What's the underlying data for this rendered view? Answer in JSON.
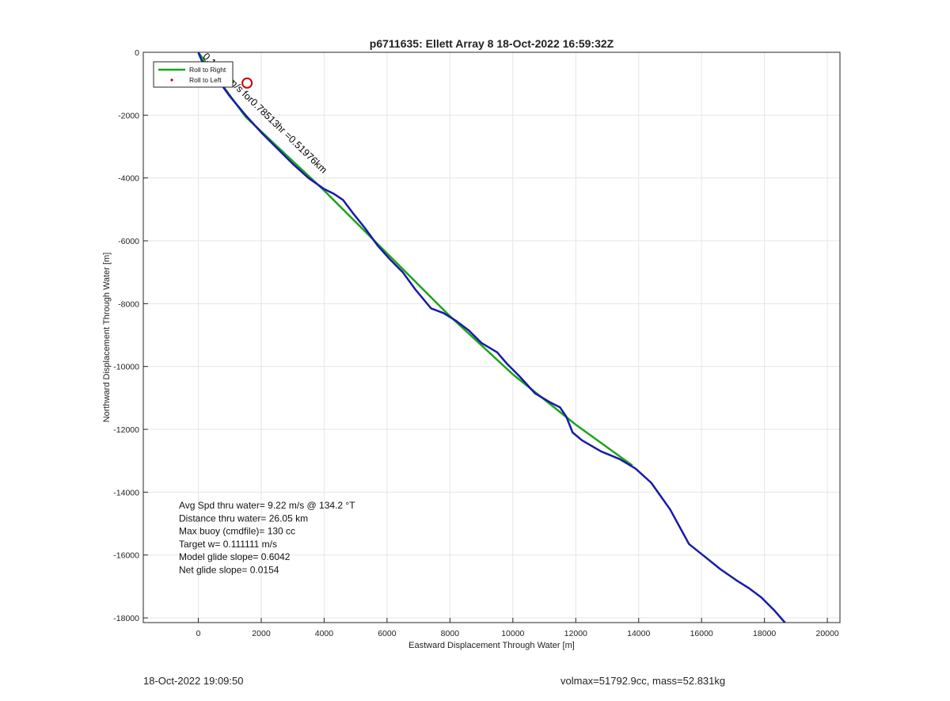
{
  "footer": {
    "left": "18-Oct-2022 19:09:50",
    "right": "volmax=51792.9cc, mass=52.831kg"
  },
  "chart_data": {
    "type": "line",
    "title": "p6711635: Ellett Array 8 18-Oct-2022 16:59:32Z",
    "xlabel": "Eastward Displacement Through Water [m]",
    "ylabel": "Northward Displacement Through Water [m]",
    "xlim": [
      -1750,
      20400
    ],
    "ylim": [
      -18150,
      0
    ],
    "xticks": [
      0,
      2000,
      4000,
      6000,
      8000,
      10000,
      12000,
      14000,
      16000,
      18000,
      20000
    ],
    "yticks": [
      0,
      -2000,
      -4000,
      -6000,
      -8000,
      -10000,
      -12000,
      -14000,
      -16000,
      -18000
    ],
    "grid": true,
    "legend": {
      "position": "top-left",
      "entries": [
        "Roll to Right",
        "Roll to Left"
      ]
    },
    "series": [
      {
        "name": "Roll to Right",
        "color": "#1aa51a",
        "points": [
          [
            0,
            0
          ],
          [
            1500,
            -2050
          ],
          [
            4000,
            -4400
          ],
          [
            6000,
            -6400
          ],
          [
            8000,
            -8400
          ],
          [
            10000,
            -10250
          ],
          [
            12000,
            -11850
          ],
          [
            13800,
            -13150
          ]
        ]
      },
      {
        "color": "#1a1aa8",
        "points": [
          [
            0,
            0
          ],
          [
            100,
            -250
          ],
          [
            300,
            -500
          ],
          [
            600,
            -850
          ],
          [
            1000,
            -1400
          ],
          [
            1500,
            -2000
          ],
          [
            2000,
            -2550
          ],
          [
            2500,
            -3050
          ],
          [
            3000,
            -3550
          ],
          [
            3500,
            -4000
          ],
          [
            4000,
            -4350
          ],
          [
            4300,
            -4500
          ],
          [
            4600,
            -4700
          ],
          [
            4900,
            -5100
          ],
          [
            5300,
            -5600
          ],
          [
            5700,
            -6150
          ],
          [
            6100,
            -6600
          ],
          [
            6500,
            -7000
          ],
          [
            6900,
            -7550
          ],
          [
            7400,
            -8150
          ],
          [
            7800,
            -8300
          ],
          [
            8200,
            -8550
          ],
          [
            8600,
            -8850
          ],
          [
            9000,
            -9250
          ],
          [
            9500,
            -9550
          ],
          [
            9800,
            -9900
          ],
          [
            10200,
            -10300
          ],
          [
            10700,
            -10850
          ],
          [
            11200,
            -11150
          ],
          [
            11500,
            -11300
          ],
          [
            11700,
            -11600
          ],
          [
            11900,
            -12100
          ],
          [
            12200,
            -12350
          ],
          [
            12800,
            -12700
          ],
          [
            13400,
            -12950
          ],
          [
            13900,
            -13250
          ],
          [
            14400,
            -13700
          ],
          [
            15000,
            -14550
          ],
          [
            15300,
            -15100
          ],
          [
            15600,
            -15650
          ],
          [
            16100,
            -16050
          ],
          [
            16600,
            -16450
          ],
          [
            17100,
            -16800
          ],
          [
            17500,
            -17050
          ],
          [
            17900,
            -17350
          ],
          [
            18300,
            -17750
          ],
          [
            18650,
            -18150
          ]
        ]
      }
    ],
    "markers": [
      {
        "x": 1550,
        "y": -980,
        "symbol": "circle",
        "color": "#cc0000"
      }
    ],
    "annotation": {
      "text": "0.18386m/s for0.78513hr =0.51976km",
      "x": 0,
      "y": 0,
      "angle": 44
    },
    "stats": [
      "Avg Spd thru water=  9.22 m/s @ 134.2 °T",
      "Distance thru water= 26.05 km",
      "Max buoy (cmdfile)= 130 cc",
      "Target w= 0.111111 m/s",
      "Model glide slope= 0.6042",
      "Net glide slope= 0.0154"
    ]
  }
}
